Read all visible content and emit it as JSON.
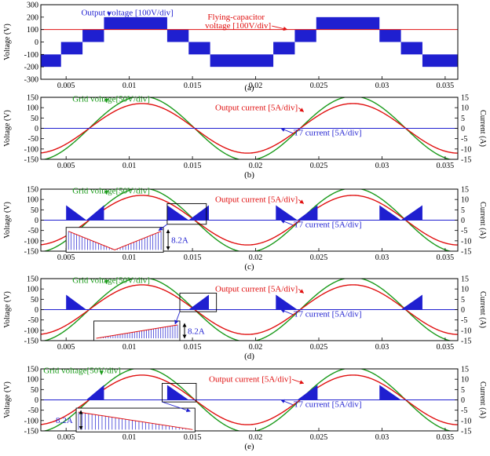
{
  "colors": {
    "blue": "#1f1fd0",
    "red": "#e01010",
    "green": "#1a9a1a",
    "black": "#000000"
  },
  "chart_data": [
    {
      "type": "area",
      "caption": "(a)",
      "ylabel": "Voltage (V)",
      "xlim": [
        0.003,
        0.036
      ],
      "ylim": [
        -300,
        300
      ],
      "yticks": [
        -300,
        -200,
        -100,
        0,
        100,
        200,
        300
      ],
      "xticks": [
        0.005,
        0.01,
        0.015,
        0.02,
        0.025,
        0.03,
        0.035
      ],
      "xticklabels": [
        "0.005",
        "0.01",
        "0.015",
        "0.02",
        "0.025",
        "0.03",
        "0.035"
      ],
      "series": [
        {
          "name": "Output voltage [100V/div]",
          "kind": "pwm_levels",
          "color": "#1f1fd0",
          "segments": [
            {
              "x": [
                0.003,
                0.0046
              ],
              "band": [
                -200,
                -100
              ]
            },
            {
              "x": [
                0.0046,
                0.0063
              ],
              "band": [
                -100,
                0
              ]
            },
            {
              "x": [
                0.0063,
                0.008
              ],
              "band": [
                0,
                100
              ]
            },
            {
              "x": [
                0.008,
                0.013
              ],
              "band": [
                100,
                200
              ]
            },
            {
              "x": [
                0.013,
                0.0147
              ],
              "band": [
                0,
                100
              ]
            },
            {
              "x": [
                0.0147,
                0.0164
              ],
              "band": [
                -100,
                0
              ]
            },
            {
              "x": [
                0.0164,
                0.0214
              ],
              "band": [
                -200,
                -100
              ]
            },
            {
              "x": [
                0.0214,
                0.0231
              ],
              "band": [
                -100,
                0
              ]
            },
            {
              "x": [
                0.0231,
                0.0248
              ],
              "band": [
                0,
                100
              ]
            },
            {
              "x": [
                0.0248,
                0.0298
              ],
              "band": [
                100,
                200
              ]
            },
            {
              "x": [
                0.0298,
                0.0315
              ],
              "band": [
                0,
                100
              ]
            },
            {
              "x": [
                0.0315,
                0.0332
              ],
              "band": [
                -100,
                0
              ]
            },
            {
              "x": [
                0.0332,
                0.036
              ],
              "band": [
                -200,
                -100
              ]
            }
          ]
        },
        {
          "name": "Flying-capacitor voltage [100V/div]",
          "kind": "constant",
          "value": 100,
          "color": "#e01010"
        }
      ],
      "annotations": [
        {
          "text": "Output voltage [100V/div]",
          "color": "#1f1fd0",
          "at": [
            0.0062,
            215
          ],
          "arrow_to": [
            0.0084,
            210
          ]
        },
        {
          "text": "Flying-capacitor",
          "color": "#e01010",
          "at": [
            0.0162,
            180
          ]
        },
        {
          "text": "voltage [100V/div]",
          "color": "#e01010",
          "at": [
            0.016,
            110
          ],
          "arrow_to": [
            0.0225,
            100
          ]
        }
      ]
    },
    {
      "type": "line",
      "caption": "(b)",
      "ylabel": "Voltage (V)",
      "y2label": "Current (A)",
      "xlim": [
        0.003,
        0.036
      ],
      "ylim": [
        -150,
        150
      ],
      "yticks": [
        -150,
        -100,
        -50,
        0,
        50,
        100,
        150
      ],
      "y2ticks": [
        -15,
        -10,
        -5,
        0,
        5,
        10,
        15
      ],
      "y2lim": [
        -15,
        15
      ],
      "xticks": [
        0.005,
        0.01,
        0.015,
        0.02,
        0.025,
        0.03,
        0.035
      ],
      "xticklabels": [
        "0.005",
        "0.01",
        "0.015",
        "0.02",
        "0.025",
        "0.03",
        "0.035"
      ],
      "series": [
        {
          "name": "Grid voltage[50V/div]",
          "kind": "sine",
          "amplitude": 155,
          "period": 0.0167,
          "peak_at": 0.011,
          "color": "#1a9a1a"
        },
        {
          "name": "Output current [5A/div]",
          "kind": "sine",
          "amplitude": 120,
          "period": 0.0167,
          "peak_at": 0.011,
          "color": "#e01010"
        },
        {
          "name": "T7 current [5A/div]",
          "kind": "constant",
          "value": 0,
          "color": "#1f1fd0"
        }
      ],
      "annotations": [
        {
          "text": "Grid voltage[50V/div]",
          "color": "#1a9a1a",
          "at": [
            0.0055,
            130
          ],
          "arrow_to": [
            0.0082,
            125
          ]
        },
        {
          "text": "Output current [5A/div]",
          "color": "#e01010",
          "at": [
            0.0168,
            88
          ],
          "arrow_to": [
            0.0238,
            80
          ]
        },
        {
          "text": "T7 current [5A/div]",
          "color": "#1f1fd0",
          "at": [
            0.023,
            -35
          ],
          "arrow_to": [
            0.022,
            0
          ]
        }
      ]
    },
    {
      "type": "line",
      "caption": "(c)",
      "ylabel": "Voltage (V)",
      "y2label": "Current (A)",
      "xlim": [
        0.003,
        0.036
      ],
      "ylim": [
        -150,
        150
      ],
      "yticks": [
        -150,
        -100,
        -50,
        0,
        50,
        100,
        150
      ],
      "y2ticks": [
        -15,
        -10,
        -5,
        0,
        5,
        10,
        15
      ],
      "y2lim": [
        -15,
        15
      ],
      "xticks": [
        0.005,
        0.01,
        0.015,
        0.02,
        0.025,
        0.03,
        0.035
      ],
      "xticklabels": [
        "0.005",
        "0.01",
        "0.015",
        "0.02",
        "0.025",
        "0.03",
        "0.035"
      ],
      "series": [
        {
          "name": "Grid voltage[50V/div]",
          "kind": "sine",
          "amplitude": 155,
          "period": 0.0167,
          "peak_at": 0.011,
          "color": "#1a9a1a"
        },
        {
          "name": "Output current [5A/div]",
          "kind": "sine",
          "amplitude": 120,
          "period": 0.0167,
          "peak_at": 0.011,
          "color": "#e01010"
        },
        {
          "name": "T7 current [5A/div]",
          "kind": "pulse_envelope",
          "color": "#1f1fd0",
          "height": 72,
          "regions": [
            {
              "x": [
                0.005,
                0.0066
              ],
              "shape": "falling"
            },
            {
              "x": [
                0.0066,
                0.008
              ],
              "shape": "rising"
            },
            {
              "x": [
                0.013,
                0.0147
              ],
              "shape": "falling"
            },
            {
              "x": [
                0.0147,
                0.0163
              ],
              "shape": "rising"
            },
            {
              "x": [
                0.0216,
                0.0233
              ],
              "shape": "falling"
            },
            {
              "x": [
                0.0233,
                0.0249
              ],
              "shape": "rising"
            },
            {
              "x": [
                0.0298,
                0.0315
              ],
              "shape": "falling"
            },
            {
              "x": [
                0.0315,
                0.0332
              ],
              "shape": "rising"
            }
          ]
        }
      ],
      "zoom": {
        "from_x": [
          0.013,
          0.0161
        ],
        "from_y": [
          -20,
          80
        ],
        "inset_x": [
          0.005,
          0.0127
        ],
        "inset_y": [
          -155,
          -35
        ],
        "shape": "v",
        "label": "8.2A"
      },
      "annotations": [
        {
          "text": "Grid voltage[50V/div]",
          "color": "#1a9a1a",
          "at": [
            0.0055,
            130
          ],
          "arrow_to": [
            0.0082,
            125
          ]
        },
        {
          "text": "Output current [5A/div]",
          "color": "#e01010",
          "at": [
            0.0168,
            88
          ],
          "arrow_to": [
            0.0238,
            80
          ]
        },
        {
          "text": "T7 current [5A/div]",
          "color": "#1f1fd0",
          "at": [
            0.023,
            -35
          ],
          "arrow_to": [
            0.022,
            0
          ]
        }
      ]
    },
    {
      "type": "line",
      "caption": "(d)",
      "ylabel": "Voltage (V)",
      "y2label": "Current (A)",
      "xlim": [
        0.003,
        0.036
      ],
      "ylim": [
        -150,
        150
      ],
      "yticks": [
        -150,
        -100,
        -50,
        0,
        50,
        100,
        150
      ],
      "y2ticks": [
        -15,
        -10,
        -5,
        0,
        5,
        10,
        15
      ],
      "y2lim": [
        -15,
        15
      ],
      "xticks": [
        0.005,
        0.01,
        0.015,
        0.02,
        0.025,
        0.03,
        0.035
      ],
      "xticklabels": [
        "0.005",
        "0.01",
        "0.015",
        "0.02",
        "0.025",
        "0.03",
        "0.035"
      ],
      "series": [
        {
          "name": "Grid voltage[50V/div]",
          "kind": "sine",
          "amplitude": 155,
          "period": 0.0167,
          "peak_at": 0.011,
          "color": "#1a9a1a"
        },
        {
          "name": "Output current [5A/div]",
          "kind": "sine",
          "amplitude": 120,
          "period": 0.0167,
          "peak_at": 0.011,
          "color": "#e01010"
        },
        {
          "name": "T7 current [5A/div]",
          "kind": "pulse_envelope",
          "color": "#1f1fd0",
          "height": 72,
          "regions": [
            {
              "x": [
                0.005,
                0.0066
              ],
              "shape": "falling"
            },
            {
              "x": [
                0.0147,
                0.0163
              ],
              "shape": "rising"
            },
            {
              "x": [
                0.0216,
                0.0233
              ],
              "shape": "falling"
            },
            {
              "x": [
                0.0315,
                0.0332
              ],
              "shape": "rising"
            }
          ]
        }
      ],
      "zoom": {
        "from_x": [
          0.014,
          0.0169
        ],
        "from_y": [
          -10,
          80
        ],
        "inset_x": [
          0.0072,
          0.014
        ],
        "inset_y": [
          -150,
          -55
        ],
        "shape": "rising",
        "label": "8.2A"
      },
      "annotations": [
        {
          "text": "Grid voltage[50V/div]",
          "color": "#1a9a1a",
          "at": [
            0.0055,
            130
          ],
          "arrow_to": [
            0.0082,
            125
          ]
        },
        {
          "text": "Output current [5A/div]",
          "color": "#e01010",
          "at": [
            0.0168,
            88
          ],
          "arrow_to": [
            0.0238,
            80
          ]
        },
        {
          "text": "T7 current [5A/div]",
          "color": "#1f1fd0",
          "at": [
            0.023,
            -35
          ],
          "arrow_to": [
            0.022,
            0
          ]
        }
      ]
    },
    {
      "type": "line",
      "caption": "(e)",
      "ylabel": "Voltage (V)",
      "y2label": "Current (A)",
      "xlim": [
        0.003,
        0.036
      ],
      "ylim": [
        -150,
        150
      ],
      "yticks": [
        -150,
        -100,
        -50,
        0,
        50,
        100,
        150
      ],
      "y2ticks": [
        -15,
        -10,
        -5,
        0,
        5,
        10,
        15
      ],
      "y2lim": [
        -15,
        15
      ],
      "xticks": [
        0.005,
        0.01,
        0.015,
        0.02,
        0.025,
        0.03,
        0.035
      ],
      "xticklabels": [
        "0.005",
        "0.01",
        "0.015",
        "0.02",
        "0.025",
        "0.03",
        "0.035"
      ],
      "series": [
        {
          "name": "Grid voltage[50V/div]",
          "kind": "sine",
          "amplitude": 155,
          "period": 0.0167,
          "peak_at": 0.011,
          "color": "#1a9a1a"
        },
        {
          "name": "Output current [5A/div]",
          "kind": "sine",
          "amplitude": 120,
          "period": 0.0167,
          "peak_at": 0.011,
          "color": "#e01010"
        },
        {
          "name": "T7 current [5A/div]",
          "kind": "pulse_envelope",
          "color": "#1f1fd0",
          "height": 72,
          "regions": [
            {
              "x": [
                0.0066,
                0.008
              ],
              "shape": "rising"
            },
            {
              "x": [
                0.013,
                0.0147
              ],
              "shape": "falling"
            },
            {
              "x": [
                0.0233,
                0.0249
              ],
              "shape": "rising"
            },
            {
              "x": [
                0.0298,
                0.0315
              ],
              "shape": "falling"
            }
          ]
        }
      ],
      "zoom": {
        "from_x": [
          0.0126,
          0.0153
        ],
        "from_y": [
          -10,
          80
        ],
        "inset_x": [
          0.0058,
          0.0152
        ],
        "inset_y": [
          -155,
          -40
        ],
        "shape": "falling",
        "label": "8.2A"
      },
      "annotations": [
        {
          "text": "Grid voltage[50V/div]",
          "color": "#1a9a1a",
          "at": [
            0.0032,
            130
          ],
          "arrow_to": [
            0.0078,
            122
          ]
        },
        {
          "text": "Output current [5A/div]",
          "color": "#e01010",
          "at": [
            0.0163,
            88
          ],
          "arrow_to": [
            0.0238,
            80
          ]
        },
        {
          "text": "T7 current [5A/div]",
          "color": "#1f1fd0",
          "at": [
            0.023,
            -35
          ],
          "arrow_to": [
            0.022,
            0
          ]
        }
      ]
    }
  ]
}
